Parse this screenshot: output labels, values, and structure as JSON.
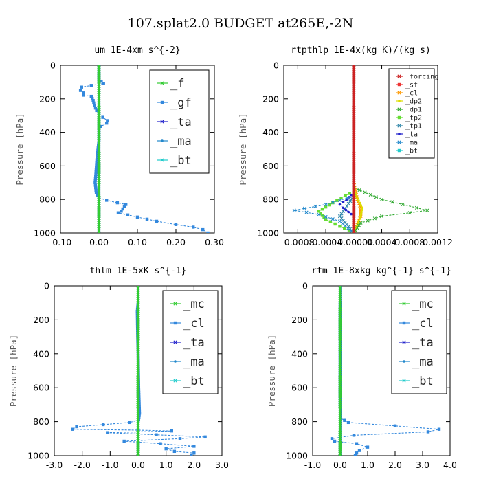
{
  "figure_title": "107.splat2.0  BUDGET at265E,-2N",
  "chart_data": [
    {
      "type": "line",
      "title": "um   1E-4xm s^{-2}",
      "xlabel": "",
      "ylabel": "Pressure [hPa]",
      "xlim": [
        -0.1,
        0.3
      ],
      "ylim": [
        1000,
        0
      ],
      "xticks": [
        -0.1,
        0.0,
        0.1,
        0.2,
        0.3
      ],
      "xtick_labels": [
        "-0.10",
        "0.00",
        "0.10",
        "0.20",
        "0.30"
      ],
      "yticks": [
        0,
        200,
        400,
        600,
        800,
        1000
      ],
      "ytick_labels": [
        "0",
        "200",
        "400",
        "600",
        "800",
        "1000"
      ],
      "legend": {
        "position": "top-right",
        "entries": [
          "_f",
          "_gf",
          "_ta",
          "_ma",
          "_bt"
        ]
      },
      "series": [
        {
          "name": "_f",
          "color": "#33cc33",
          "values": [
            [
              0,
              0
            ],
            [
              0,
              1000
            ]
          ]
        },
        {
          "name": "_gf",
          "color": "#3388dd",
          "values": [
            [
              0.0,
              0
            ],
            [
              0.0,
              80
            ],
            [
              0.006,
              95
            ],
            [
              0.012,
              108
            ],
            [
              -0.02,
              120
            ],
            [
              -0.045,
              130
            ],
            [
              -0.048,
              150
            ],
            [
              -0.04,
              165
            ],
            [
              -0.04,
              178
            ],
            [
              -0.02,
              185
            ],
            [
              -0.015,
              210
            ],
            [
              -0.012,
              240
            ],
            [
              -0.006,
              270
            ],
            [
              0.0,
              290
            ],
            [
              0.01,
              310
            ],
            [
              0.022,
              330
            ],
            [
              0.02,
              345
            ],
            [
              0.005,
              365
            ],
            [
              0.0,
              385
            ],
            [
              0.0,
              450
            ],
            [
              -0.005,
              550
            ],
            [
              -0.008,
              650
            ],
            [
              -0.01,
              700
            ],
            [
              -0.007,
              760
            ],
            [
              0.0,
              790
            ],
            [
              0.02,
              805
            ],
            [
              0.048,
              820
            ],
            [
              0.07,
              830
            ],
            [
              0.058,
              870
            ],
            [
              0.05,
              880
            ],
            [
              0.1,
              905
            ],
            [
              0.15,
              930
            ],
            [
              0.2,
              950
            ],
            [
              0.245,
              965
            ],
            [
              0.27,
              980
            ],
            [
              0.283,
              1000
            ]
          ]
        },
        {
          "name": "_ta",
          "color": "#2222cc",
          "values": [
            [
              0,
              0
            ],
            [
              0,
              1000
            ]
          ]
        },
        {
          "name": "_ma",
          "color": "#2288cc",
          "values": [
            [
              0,
              0
            ],
            [
              0,
              1000
            ]
          ]
        },
        {
          "name": "_bt",
          "color": "#22cccc",
          "values": [
            [
              0,
              0
            ],
            [
              0,
              1000
            ]
          ]
        }
      ]
    },
    {
      "type": "line",
      "title": "rtpthlp   1E-4x(kg K)/(kg s)",
      "xlabel": "",
      "ylabel": "Pressure [hPa]",
      "xlim": [
        -0.001,
        0.0012
      ],
      "ylim": [
        1000,
        0
      ],
      "xticks": [
        -0.0008,
        -0.0004,
        0.0,
        0.0004,
        0.0008,
        0.0012
      ],
      "xtick_labels": [
        "-0.0008",
        "-0.0004",
        "-0.00000",
        "0.0004",
        "0.0008",
        "0.0012"
      ],
      "yticks": [
        0,
        200,
        400,
        600,
        800,
        1000
      ],
      "ytick_labels": [
        "0",
        "200",
        "400",
        "600",
        "800",
        "1000"
      ],
      "legend": {
        "position": "top-right",
        "entries": [
          "_forcing",
          "_sf",
          "_cl",
          "_dp2",
          "_dp1",
          "_tp2",
          "_tp1",
          "_ta",
          "_ma",
          "_bt"
        ]
      },
      "series": [
        {
          "name": "_forcing",
          "color": "#cc2222",
          "values": [
            [
              0,
              0
            ],
            [
              0,
              1000
            ]
          ]
        },
        {
          "name": "_sf",
          "color": "#ee3333",
          "values": [
            [
              0,
              0
            ],
            [
              0,
              1000
            ]
          ]
        },
        {
          "name": "_cl",
          "color": "#ff9900",
          "values": [
            [
              0,
              700
            ],
            [
              5e-05,
              800
            ],
            [
              0.0001,
              850
            ],
            [
              0.0001,
              900
            ],
            [
              5e-05,
              950
            ],
            [
              0,
              1000
            ]
          ]
        },
        {
          "name": "_dp2",
          "color": "#dddd00",
          "values": [
            [
              0,
              750
            ],
            [
              0.00012,
              850
            ],
            [
              0.0001,
              900
            ],
            [
              0,
              1000
            ]
          ]
        },
        {
          "name": "_dp1",
          "color": "#33aa33",
          "values": [
            [
              0,
              730
            ],
            [
              0.0004,
              800
            ],
            [
              0.0007,
              830
            ],
            [
              0.0009,
              850
            ],
            [
              0.00105,
              865
            ],
            [
              0.0008,
              880
            ],
            [
              0.0004,
              900
            ],
            [
              0.0001,
              940
            ],
            [
              0,
              1000
            ]
          ]
        },
        {
          "name": "_tp2",
          "color": "#66dd33",
          "values": [
            [
              0,
              750
            ],
            [
              -0.0003,
              820
            ],
            [
              -0.0005,
              870
            ],
            [
              -0.0004,
              920
            ],
            [
              -0.0002,
              960
            ],
            [
              0,
              1000
            ]
          ]
        },
        {
          "name": "_tp1",
          "color": "#3388aa",
          "values": [
            [
              0,
              780
            ],
            [
              -0.0001,
              840
            ],
            [
              -0.0002,
              900
            ],
            [
              -0.0001,
              950
            ],
            [
              0,
              1000
            ]
          ]
        },
        {
          "name": "_ta",
          "color": "#2222cc",
          "values": [
            [
              0,
              760
            ],
            [
              -0.0001,
              800
            ],
            [
              -0.0002,
              830
            ],
            [
              -0.00015,
              850
            ],
            [
              0,
              900
            ],
            [
              0,
              1000
            ]
          ]
        },
        {
          "name": "_ma",
          "color": "#2288cc",
          "values": [
            [
              0,
              780
            ],
            [
              -0.0004,
              830
            ],
            [
              -0.00085,
              865
            ],
            [
              -0.0005,
              890
            ],
            [
              -0.0002,
              930
            ],
            [
              0,
              1000
            ]
          ]
        },
        {
          "name": "_bt",
          "color": "#22cccc",
          "values": [
            [
              0,
              0
            ],
            [
              0,
              1000
            ]
          ]
        }
      ]
    },
    {
      "type": "line",
      "title": "thlm   1E-5xK s^{-1}",
      "xlabel": "",
      "ylabel": "Pressure [hPa]",
      "xlim": [
        -3.0,
        3.0
      ],
      "ylim": [
        1000,
        0
      ],
      "xticks": [
        -3,
        -2,
        -1,
        0,
        1,
        2,
        3
      ],
      "xtick_labels": [
        "-3.0",
        "-2.0",
        "-1.0",
        "0.0",
        "1.0",
        "2.0",
        "3.0"
      ],
      "yticks": [
        0,
        200,
        400,
        600,
        800,
        1000
      ],
      "ytick_labels": [
        "0",
        "200",
        "400",
        "600",
        "800",
        "1000"
      ],
      "legend": {
        "position": "top-right",
        "entries": [
          "_mc",
          "_cl",
          "_ta",
          "_ma",
          "_bt"
        ]
      },
      "series": [
        {
          "name": "_mc",
          "color": "#33cc33",
          "values": [
            [
              0,
              0
            ],
            [
              0,
              1000
            ]
          ]
        },
        {
          "name": "_cl",
          "color": "#3388dd",
          "values": [
            [
              0.0,
              100
            ],
            [
              -0.03,
              150
            ],
            [
              -0.02,
              250
            ],
            [
              0.0,
              400
            ],
            [
              0.02,
              600
            ],
            [
              0.05,
              750
            ],
            [
              0.02,
              790
            ],
            [
              -0.3,
              805
            ],
            [
              -2.2,
              830
            ],
            [
              -2.35,
              845
            ],
            [
              0.0,
              850
            ],
            [
              1.2,
              855
            ],
            [
              -1.1,
              865
            ],
            [
              2.4,
              890
            ],
            [
              1.5,
              900
            ],
            [
              -0.5,
              915
            ],
            [
              0.8,
              930
            ],
            [
              2.0,
              945
            ],
            [
              1.0,
              960
            ],
            [
              1.3,
              975
            ],
            [
              2.0,
              985
            ],
            [
              1.9,
              1000
            ]
          ]
        },
        {
          "name": "_ta",
          "color": "#2222cc",
          "values": [
            [
              0,
              0
            ],
            [
              0,
              1000
            ]
          ]
        },
        {
          "name": "_ma",
          "color": "#2288cc",
          "values": [
            [
              0,
              0
            ],
            [
              0,
              1000
            ]
          ]
        },
        {
          "name": "_bt",
          "color": "#22cccc",
          "values": [
            [
              0,
              0
            ],
            [
              0,
              1000
            ]
          ]
        }
      ]
    },
    {
      "type": "line",
      "title": "rtm   1E-8xkg kg^{-1} s^{-1}",
      "xlabel": "",
      "ylabel": "Pressure [hPa]",
      "xlim": [
        -1.0,
        4.0
      ],
      "ylim": [
        1000,
        0
      ],
      "xticks": [
        -1,
        0,
        1,
        2,
        3,
        4
      ],
      "xtick_labels": [
        "-1.0",
        "0.0",
        "1.0",
        "2.0",
        "3.0",
        "4.0"
      ],
      "yticks": [
        0,
        200,
        400,
        600,
        800,
        1000
      ],
      "ytick_labels": [
        "0",
        "200",
        "400",
        "600",
        "800",
        "1000"
      ],
      "legend": {
        "position": "top-right",
        "entries": [
          "_mc",
          "_cl",
          "_ta",
          "_ma",
          "_bt"
        ]
      },
      "series": [
        {
          "name": "_mc",
          "color": "#33cc33",
          "values": [
            [
              0,
              0
            ],
            [
              0,
              1000
            ]
          ]
        },
        {
          "name": "_cl",
          "color": "#3388dd",
          "values": [
            [
              0.0,
              100
            ],
            [
              0.0,
              700
            ],
            [
              0.02,
              780
            ],
            [
              0.3,
              805
            ],
            [
              2.0,
              825
            ],
            [
              3.6,
              845
            ],
            [
              3.2,
              860
            ],
            [
              0.5,
              880
            ],
            [
              -0.3,
              900
            ],
            [
              -0.2,
              915
            ],
            [
              0.6,
              930
            ],
            [
              1.0,
              950
            ],
            [
              0.7,
              970
            ],
            [
              0.6,
              985
            ],
            [
              0.55,
              1000
            ]
          ]
        },
        {
          "name": "_ta",
          "color": "#2222cc",
          "values": [
            [
              0,
              0
            ],
            [
              0,
              1000
            ]
          ]
        },
        {
          "name": "_ma",
          "color": "#2288cc",
          "values": [
            [
              0,
              0
            ],
            [
              0,
              1000
            ]
          ]
        },
        {
          "name": "_bt",
          "color": "#22cccc",
          "values": [
            [
              0,
              0
            ],
            [
              0,
              1000
            ]
          ]
        }
      ]
    }
  ]
}
